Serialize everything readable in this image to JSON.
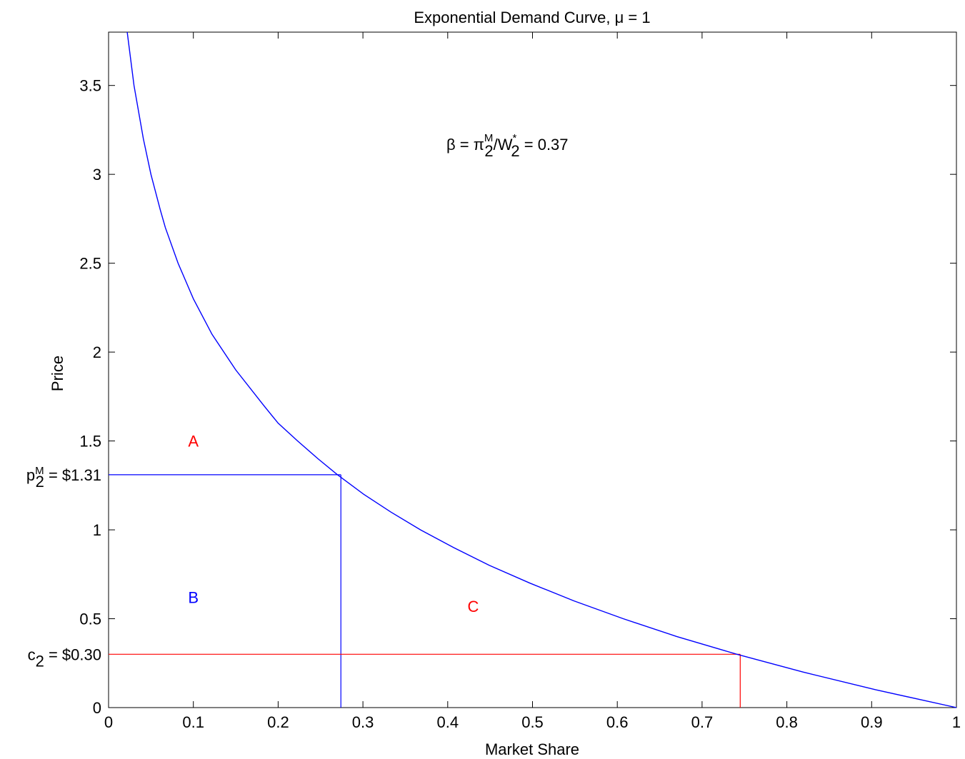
{
  "chart_data": {
    "type": "line",
    "title": "Exponential Demand Curve, μ = 1",
    "xlabel": "Market Share",
    "ylabel": "Price",
    "xlim": [
      0,
      1
    ],
    "ylim": [
      0,
      3.8
    ],
    "xticks": [
      "0",
      "0.1",
      "0.2",
      "0.3",
      "0.4",
      "0.5",
      "0.6",
      "0.7",
      "0.8",
      "0.9",
      "1"
    ],
    "xtick_values": [
      0,
      0.1,
      0.2,
      0.3,
      0.4,
      0.5,
      0.6,
      0.7,
      0.8,
      0.9,
      1
    ],
    "yticks": [
      "0",
      "0.5",
      "1",
      "1.5",
      "2",
      "2.5",
      "3",
      "3.5"
    ],
    "ytick_values": [
      0,
      0.5,
      1,
      1.5,
      2,
      2.5,
      3,
      3.5
    ],
    "grid": false,
    "series": [
      {
        "color": "#0000ff",
        "x": [
          0.022,
          0.03,
          0.041,
          0.05,
          0.061,
          0.067,
          0.082,
          0.091,
          0.1,
          0.122,
          0.15,
          0.183,
          0.2,
          0.223,
          0.247,
          0.27,
          0.301,
          0.333,
          0.368,
          0.407,
          0.449,
          0.497,
          0.549,
          0.607,
          0.67,
          0.741,
          0.819,
          0.905,
          1.0
        ],
        "y": [
          3.8,
          3.5,
          3.2,
          3.0,
          2.8,
          2.7,
          2.5,
          2.4,
          2.3,
          2.1,
          1.9,
          1.7,
          1.6,
          1.5,
          1.4,
          1.31,
          1.2,
          1.1,
          1.0,
          0.9,
          0.8,
          0.7,
          0.6,
          0.5,
          0.4,
          0.3,
          0.2,
          0.1,
          0.0
        ]
      }
    ],
    "reference_lines": {
      "monopoly_price": {
        "price": 1.31,
        "share": 0.274,
        "color": "#0000ff"
      },
      "cost": {
        "price": 0.3,
        "share": 0.745,
        "color": "#ff0000"
      }
    },
    "price_labels": {
      "monopoly": {
        "prefix": "p",
        "sub": "2",
        "sup": "M",
        "suffix": " = $1.31",
        "price": 1.31
      },
      "cost": {
        "prefix": "c",
        "sub": "2",
        "suffix": " = $0.30",
        "price": 0.3
      }
    },
    "beta_annotation": {
      "lead": "β = π",
      "pi_sub": "2",
      "pi_sup": "M",
      "mid": "/W",
      "w_sub": "2",
      "w_sup": "*",
      "tail": " = 0.37",
      "x": 0.4,
      "y": 3.2
    },
    "region_labels": [
      {
        "text": "A",
        "x": 0.1,
        "y": 1.5,
        "color": "#ff0000"
      },
      {
        "text": "B",
        "x": 0.1,
        "y": 0.62,
        "color": "#0000ff"
      },
      {
        "text": "C",
        "x": 0.43,
        "y": 0.57,
        "color": "#ff0000"
      }
    ]
  }
}
